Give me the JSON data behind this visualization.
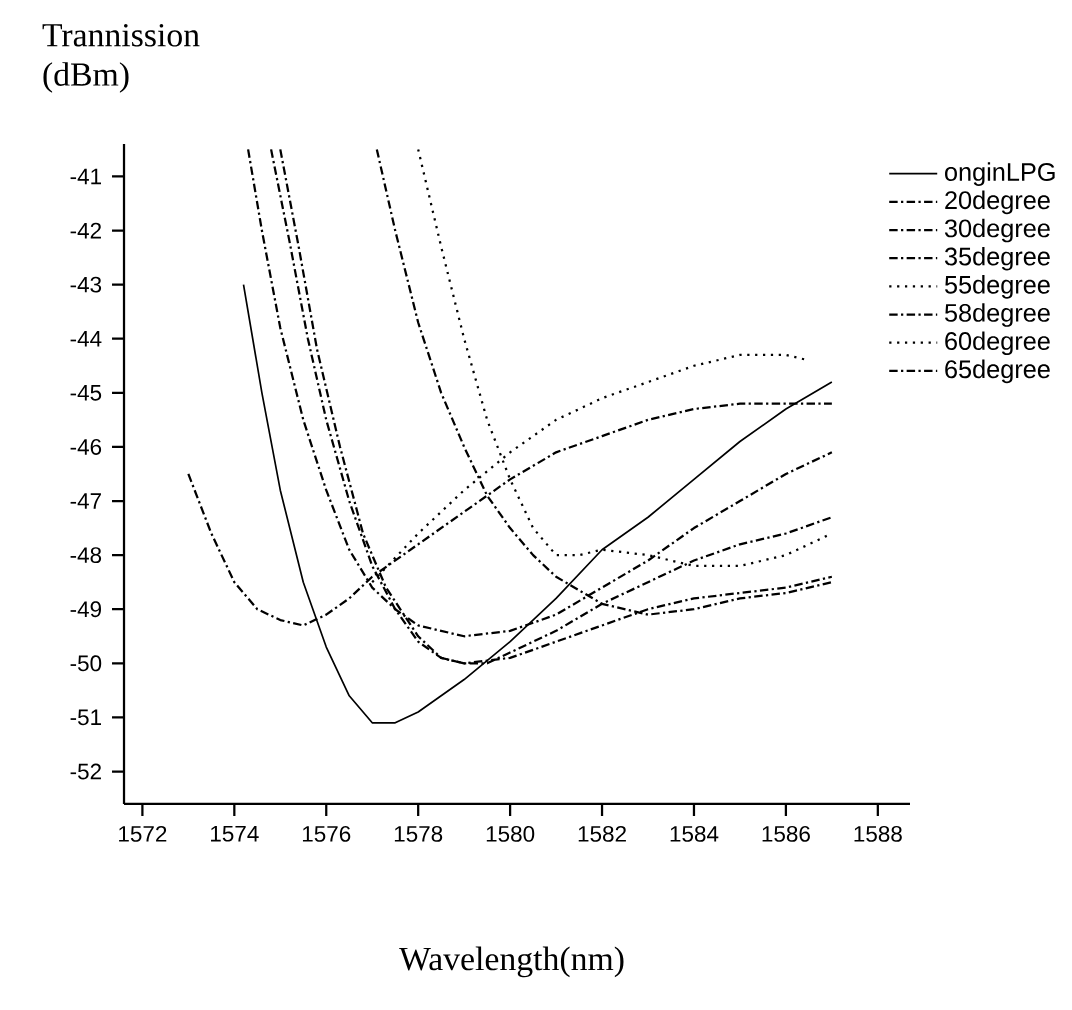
{
  "chart_data": {
    "type": "line",
    "ylabel": "Trannission (dBm)",
    "xlabel": "Wavelength(nm)",
    "xlim": [
      1571.6,
      1588.7
    ],
    "ylim": [
      -52.6,
      -40.4
    ],
    "xticks": [
      1572,
      1574,
      1576,
      1578,
      1580,
      1582,
      1584,
      1586,
      1588
    ],
    "yticks": [
      -41,
      -42,
      -43,
      -44,
      -45,
      -46,
      -47,
      -48,
      -49,
      -50,
      -51,
      -52
    ],
    "legend": "top right",
    "grid": false,
    "series": [
      {
        "name": "onginLPG",
        "color": "#000000",
        "line_style": "solid",
        "x": [
          1574.2,
          1574.6,
          1575,
          1575.5,
          1576,
          1576.5,
          1577,
          1577.5,
          1578,
          1579,
          1580,
          1581,
          1582,
          1583,
          1584,
          1585,
          1586,
          1587
        ],
        "values": [
          -43.0,
          -45.0,
          -46.8,
          -48.5,
          -49.7,
          -50.6,
          -51.1,
          -51.1,
          -50.9,
          -50.3,
          -49.6,
          -48.8,
          -47.9,
          -47.3,
          -46.6,
          -45.9,
          -45.3,
          -44.8
        ]
      },
      {
        "name": "20degree",
        "color": "#000000",
        "line_style": "dashed",
        "x": [
          1574.3,
          1574.6,
          1575,
          1575.5,
          1576,
          1576.5,
          1577,
          1577.5,
          1578,
          1579,
          1580,
          1581,
          1582,
          1583,
          1584,
          1585,
          1586,
          1587
        ],
        "values": [
          -40.5,
          -42.0,
          -43.8,
          -45.5,
          -46.8,
          -47.9,
          -48.6,
          -49.0,
          -49.3,
          -49.5,
          -49.4,
          -49.1,
          -48.6,
          -48.1,
          -47.5,
          -47.0,
          -46.5,
          -46.1
        ]
      },
      {
        "name": "30degree",
        "color": "#000000",
        "line_style": "dashed",
        "x": [
          1574.8,
          1575.2,
          1575.6,
          1576,
          1576.5,
          1577,
          1577.5,
          1578,
          1578.5,
          1579,
          1579.5,
          1580,
          1581,
          1582,
          1583,
          1584,
          1585,
          1586,
          1587
        ],
        "values": [
          -40.5,
          -42.2,
          -44.0,
          -45.5,
          -47.0,
          -48.2,
          -49.0,
          -49.6,
          -49.9,
          -50.0,
          -50.0,
          -49.8,
          -49.4,
          -48.9,
          -48.5,
          -48.1,
          -47.8,
          -47.6,
          -47.3
        ]
      },
      {
        "name": "35degree",
        "color": "#000000",
        "line_style": "dashed",
        "x": [
          1575.0,
          1575.4,
          1575.8,
          1576.3,
          1576.8,
          1577.3,
          1578,
          1578.5,
          1579,
          1580,
          1581,
          1582,
          1583,
          1584,
          1585,
          1586,
          1587
        ],
        "values": [
          -40.5,
          -42.3,
          -44.2,
          -46.0,
          -47.6,
          -48.6,
          -49.5,
          -49.9,
          -50.0,
          -49.9,
          -49.6,
          -49.3,
          -49.0,
          -48.8,
          -48.7,
          -48.6,
          -48.4
        ]
      },
      {
        "name": "55degree",
        "color": "#000000",
        "line_style": "dotted",
        "x": [
          1578.0,
          1578.5,
          1579,
          1579.5,
          1580,
          1580.5,
          1581,
          1581.5,
          1582,
          1583,
          1584,
          1585,
          1586,
          1587
        ],
        "values": [
          -40.5,
          -42.3,
          -44.0,
          -45.5,
          -46.6,
          -47.5,
          -48.0,
          -48.0,
          -47.9,
          -48.0,
          -48.2,
          -48.2,
          -48.0,
          -47.6
        ]
      },
      {
        "name": "58degree",
        "color": "#000000",
        "line_style": "dashed",
        "x": [
          1577.1,
          1577.5,
          1578,
          1578.5,
          1579,
          1579.5,
          1580,
          1580.5,
          1581,
          1582,
          1583,
          1584,
          1585,
          1586,
          1587
        ],
        "values": [
          -40.5,
          -42.0,
          -43.7,
          -45.0,
          -46.0,
          -46.9,
          -47.5,
          -48.0,
          -48.4,
          -48.9,
          -49.1,
          -49.0,
          -48.8,
          -48.7,
          -48.5
        ]
      },
      {
        "name": "60degree",
        "color": "#000000",
        "line_style": "dotted",
        "x": [
          1577,
          1578,
          1579,
          1580,
          1581,
          1582,
          1583,
          1584,
          1585,
          1586,
          1586.5
        ],
        "values": [
          -48.5,
          -47.6,
          -46.8,
          -46.1,
          -45.5,
          -45.1,
          -44.8,
          -44.5,
          -44.3,
          -44.3,
          -44.4
        ]
      },
      {
        "name": "65degree",
        "color": "#000000",
        "line_style": "dashed",
        "x": [
          1573,
          1573.5,
          1574,
          1574.5,
          1575,
          1575.5,
          1576,
          1576.5,
          1577,
          1578,
          1579,
          1580,
          1581,
          1582,
          1583,
          1584,
          1585,
          1586,
          1587
        ],
        "values": [
          -46.5,
          -47.6,
          -48.5,
          -49.0,
          -49.2,
          -49.3,
          -49.1,
          -48.8,
          -48.4,
          -47.8,
          -47.2,
          -46.6,
          -46.1,
          -45.8,
          -45.5,
          -45.3,
          -45.2,
          -45.2,
          -45.2
        ]
      }
    ]
  }
}
